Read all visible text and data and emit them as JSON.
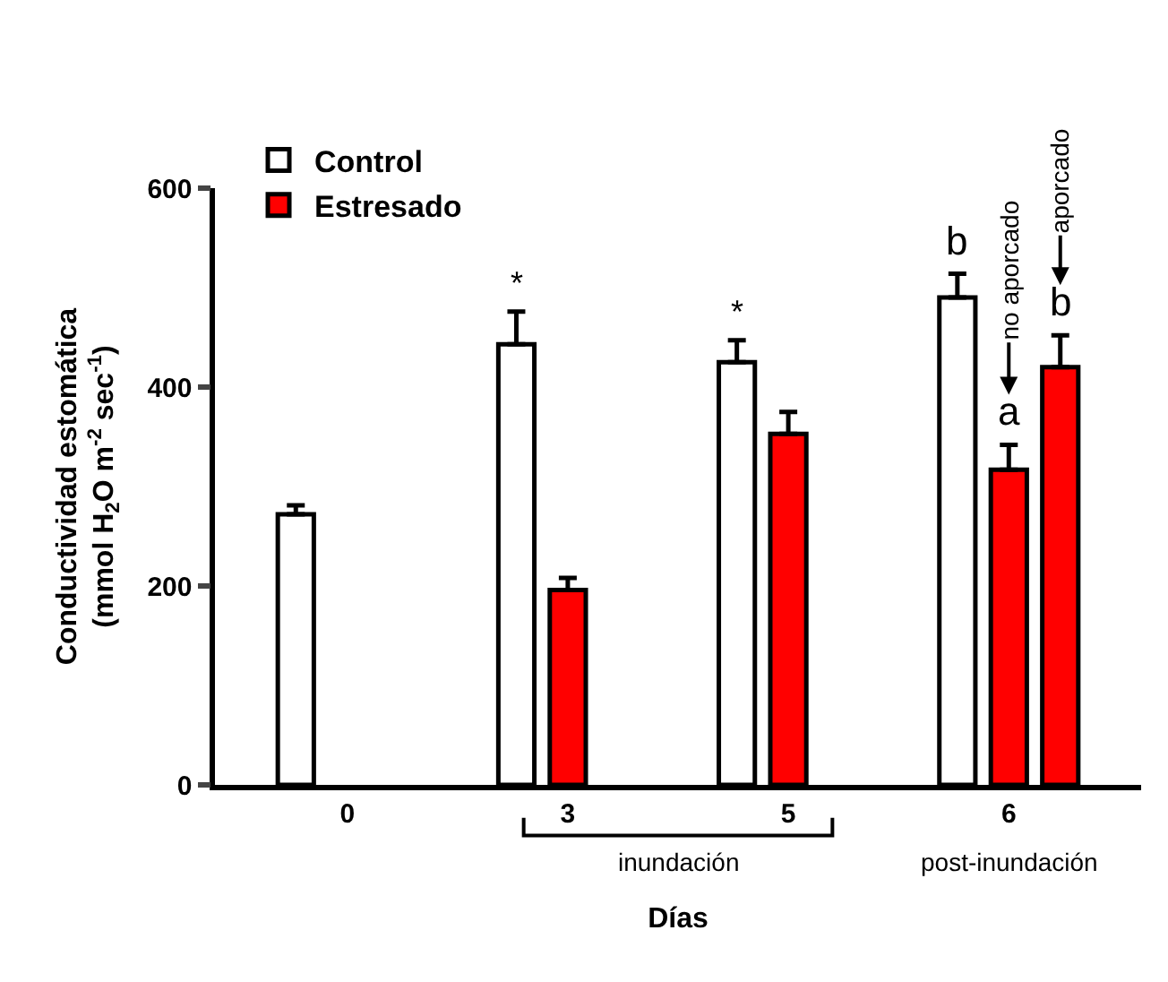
{
  "chart_data": {
    "type": "bar",
    "xlabel": "Días",
    "ylabel": "Conductividad estomática\n(mmol H$_{2}$O m$^{-2}$ sec$^{-1}$)",
    "categories": [
      "0",
      "3",
      "5",
      "6"
    ],
    "series": [
      {
        "name": "Control",
        "color": "#ffffff",
        "values": [
          272,
          443,
          425,
          490
        ],
        "errors": [
          [
            272,
            281
          ],
          [
            443,
            476
          ],
          [
            425,
            447
          ],
          [
            490,
            514
          ]
        ]
      },
      {
        "name": "Estresado",
        "color": "#ff0000",
        "values": [
          null,
          196,
          353,
          317
        ],
        "errors": [
          null,
          [
            196,
            208
          ],
          [
            353,
            375
          ],
          [
            317,
            342
          ]
        ]
      },
      {
        "color": "#ff0000",
        "values": [
          null,
          null,
          null,
          420
        ],
        "errors": [
          null,
          null,
          null,
          [
            420,
            452
          ]
        ]
      }
    ],
    "ylim": [
      0,
      600
    ],
    "yticks": [
      0,
      200,
      400,
      600
    ],
    "legend": "top left",
    "annotations": [
      "*",
      "*",
      "b",
      "a",
      "b",
      "no aporcado",
      "aporcado",
      "inundación",
      "post-inundación"
    ]
  }
}
